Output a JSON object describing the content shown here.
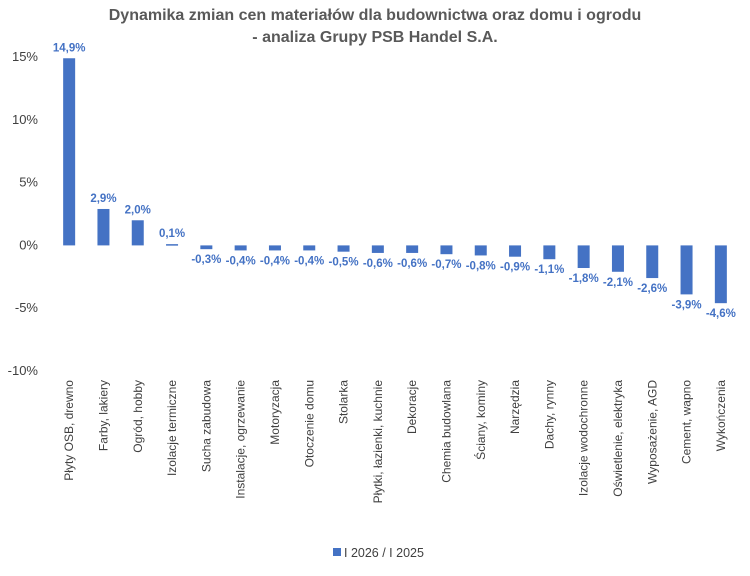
{
  "chart_data": {
    "type": "bar",
    "title_line1": "Dynamika zmian cen materiałów dla budownictwa oraz domu i ogrodu",
    "title_line2": "- analiza Grupy PSB Handel S.A.",
    "categories": [
      "Płyty OSB, drewno",
      "Farby, lakiery",
      "Ogród, hobby",
      "Izolacje termiczne",
      "Sucha zabudowa",
      "Instalacje, ogrzewanie",
      "Motoryzacja",
      "Otoczenie domu",
      "Stolarka",
      "Płytki, łazienki, kuchnie",
      "Dekoracje",
      "Chemia budowlana",
      "Ściany, kominy",
      "Narzędzia",
      "Dachy, rynny",
      "Izolacje wodochronne",
      "Oświetlenie, elektryka",
      "Wyposażenie, AGD",
      "Cement, wapno",
      "Wykończenia"
    ],
    "series": [
      {
        "name": "I 2026 / I 2025",
        "values": [
          14.9,
          2.9,
          2.0,
          0.1,
          -0.3,
          -0.4,
          -0.4,
          -0.4,
          -0.5,
          -0.6,
          -0.6,
          -0.7,
          -0.8,
          -0.9,
          -1.1,
          -1.8,
          -2.1,
          -2.6,
          -3.9,
          -4.6
        ],
        "labels": [
          "14,9%",
          "2,9%",
          "2,0%",
          "0,1%",
          "-0,3%",
          "-0,4%",
          "-0,4%",
          "-0,4%",
          "-0,5%",
          "-0,6%",
          "-0,6%",
          "-0,7%",
          "-0,8%",
          "-0,9%",
          "-1,1%",
          "-1,8%",
          "-2,1%",
          "-2,6%",
          "-3,9%",
          "-4,6%"
        ]
      }
    ],
    "yticks": [
      15,
      10,
      5,
      0,
      -5,
      -10
    ],
    "ytick_labels": [
      "15%",
      "10%",
      "5%",
      "0%",
      "-5%",
      "-10%"
    ],
    "ylim": [
      -10,
      15
    ],
    "xlabel": "",
    "ylabel": "",
    "legend": "bottom",
    "grid": false,
    "colors": {
      "bar": "#4472C4",
      "label": "#4472C4",
      "text": "#404040",
      "title": "#595959"
    }
  }
}
